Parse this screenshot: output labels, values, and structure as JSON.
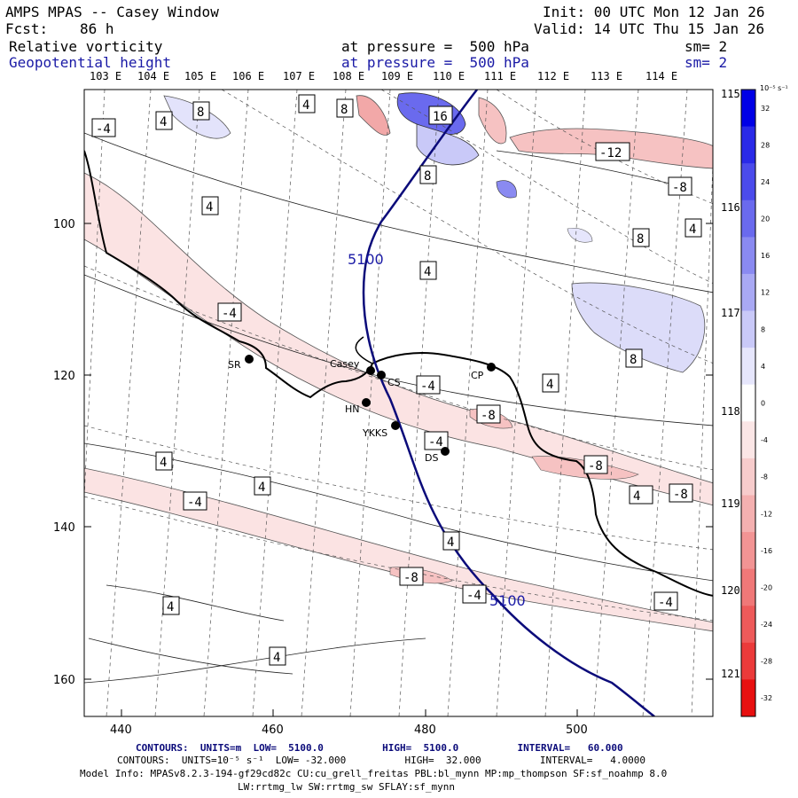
{
  "header": {
    "title": "AMPS MPAS -- Casey Window",
    "init": "Init: 00 UTC Mon 12 Jan 26",
    "fcst_label": "Fcst:",
    "fcst_value": "86 h",
    "valid": "Valid: 14 UTC Thu 15 Jan 26",
    "field1_name": "Relative vorticity",
    "field1_level": "at pressure =  500 hPa",
    "field1_sm": "sm= 2",
    "field2_name": "Geopotential height",
    "field2_level": "at pressure =  500 hPa",
    "field2_sm": "sm= 2"
  },
  "axes": {
    "top_lon": [
      "103 E",
      "104 E",
      "105 E",
      "106 E",
      "107 E",
      "108 E",
      "109 E",
      "110 E",
      "111 E",
      "112 E",
      "113 E",
      "114 E"
    ],
    "right_lon": [
      "115 E",
      "116 E",
      "117 E",
      "118 E",
      "119 E",
      "120 E",
      "121 E"
    ],
    "left_y": [
      "100",
      "120",
      "140",
      "160"
    ],
    "bottom_x": [
      "440",
      "460",
      "480",
      "500"
    ]
  },
  "stations": [
    {
      "name": "SR"
    },
    {
      "name": "Casey"
    },
    {
      "name": "CS"
    },
    {
      "name": "CP"
    },
    {
      "name": "HN"
    },
    {
      "name": "YKKS"
    },
    {
      "name": "DS"
    }
  ],
  "contour_labels": [
    "-4",
    "4",
    "8",
    "4",
    "8",
    "16",
    "8",
    "-12",
    "-8",
    "4",
    "8",
    "4",
    "4",
    "-4",
    "4",
    "8",
    "-4",
    "4",
    "-8",
    "-4",
    "-8",
    "-8",
    "4",
    "4",
    "-4",
    "-8",
    "4",
    "-4",
    "-4",
    "4",
    "4"
  ],
  "height_label": "5100",
  "colorbar": {
    "unit_label": "10⁻⁵ s⁻¹",
    "ticks": [
      "32",
      "28",
      "24",
      "20",
      "16",
      "12",
      "8",
      "4",
      "0",
      "-4",
      "-8",
      "-12",
      "-16",
      "-20",
      "-24",
      "-28",
      "-32"
    ],
    "colors": [
      "#0000e6",
      "#2a2ae8",
      "#4b4beb",
      "#6a6aee",
      "#8a8af1",
      "#a9a9f4",
      "#c9c9f8",
      "#e6e6fc",
      "#ffffff",
      "#fbe6e6",
      "#f7cccc",
      "#f4b0b0",
      "#f29494",
      "#f07878",
      "#ee5a5a",
      "#eb3a3a",
      "#e81010"
    ]
  },
  "footer": {
    "line1": "CONTOURS:  UNITS=m  LOW=  5100.0          HIGH=  5100.0          INTERVAL=   60.000",
    "line2": "CONTOURS:  UNITS=10⁻⁵ s⁻¹  LOW= -32.000          HIGH=  32.000          INTERVAL=   4.0000",
    "line3": "Model Info: MPASv8.2.3-194-gf29cd82c CU:cu_grell_freitas PBL:bl_mynn MP:mp_thompson SF:sf_noahmp 8.0",
    "line4": "LW:rrtmg_lw SW:rrtmg_sw SFLAY:sf_mynn"
  }
}
